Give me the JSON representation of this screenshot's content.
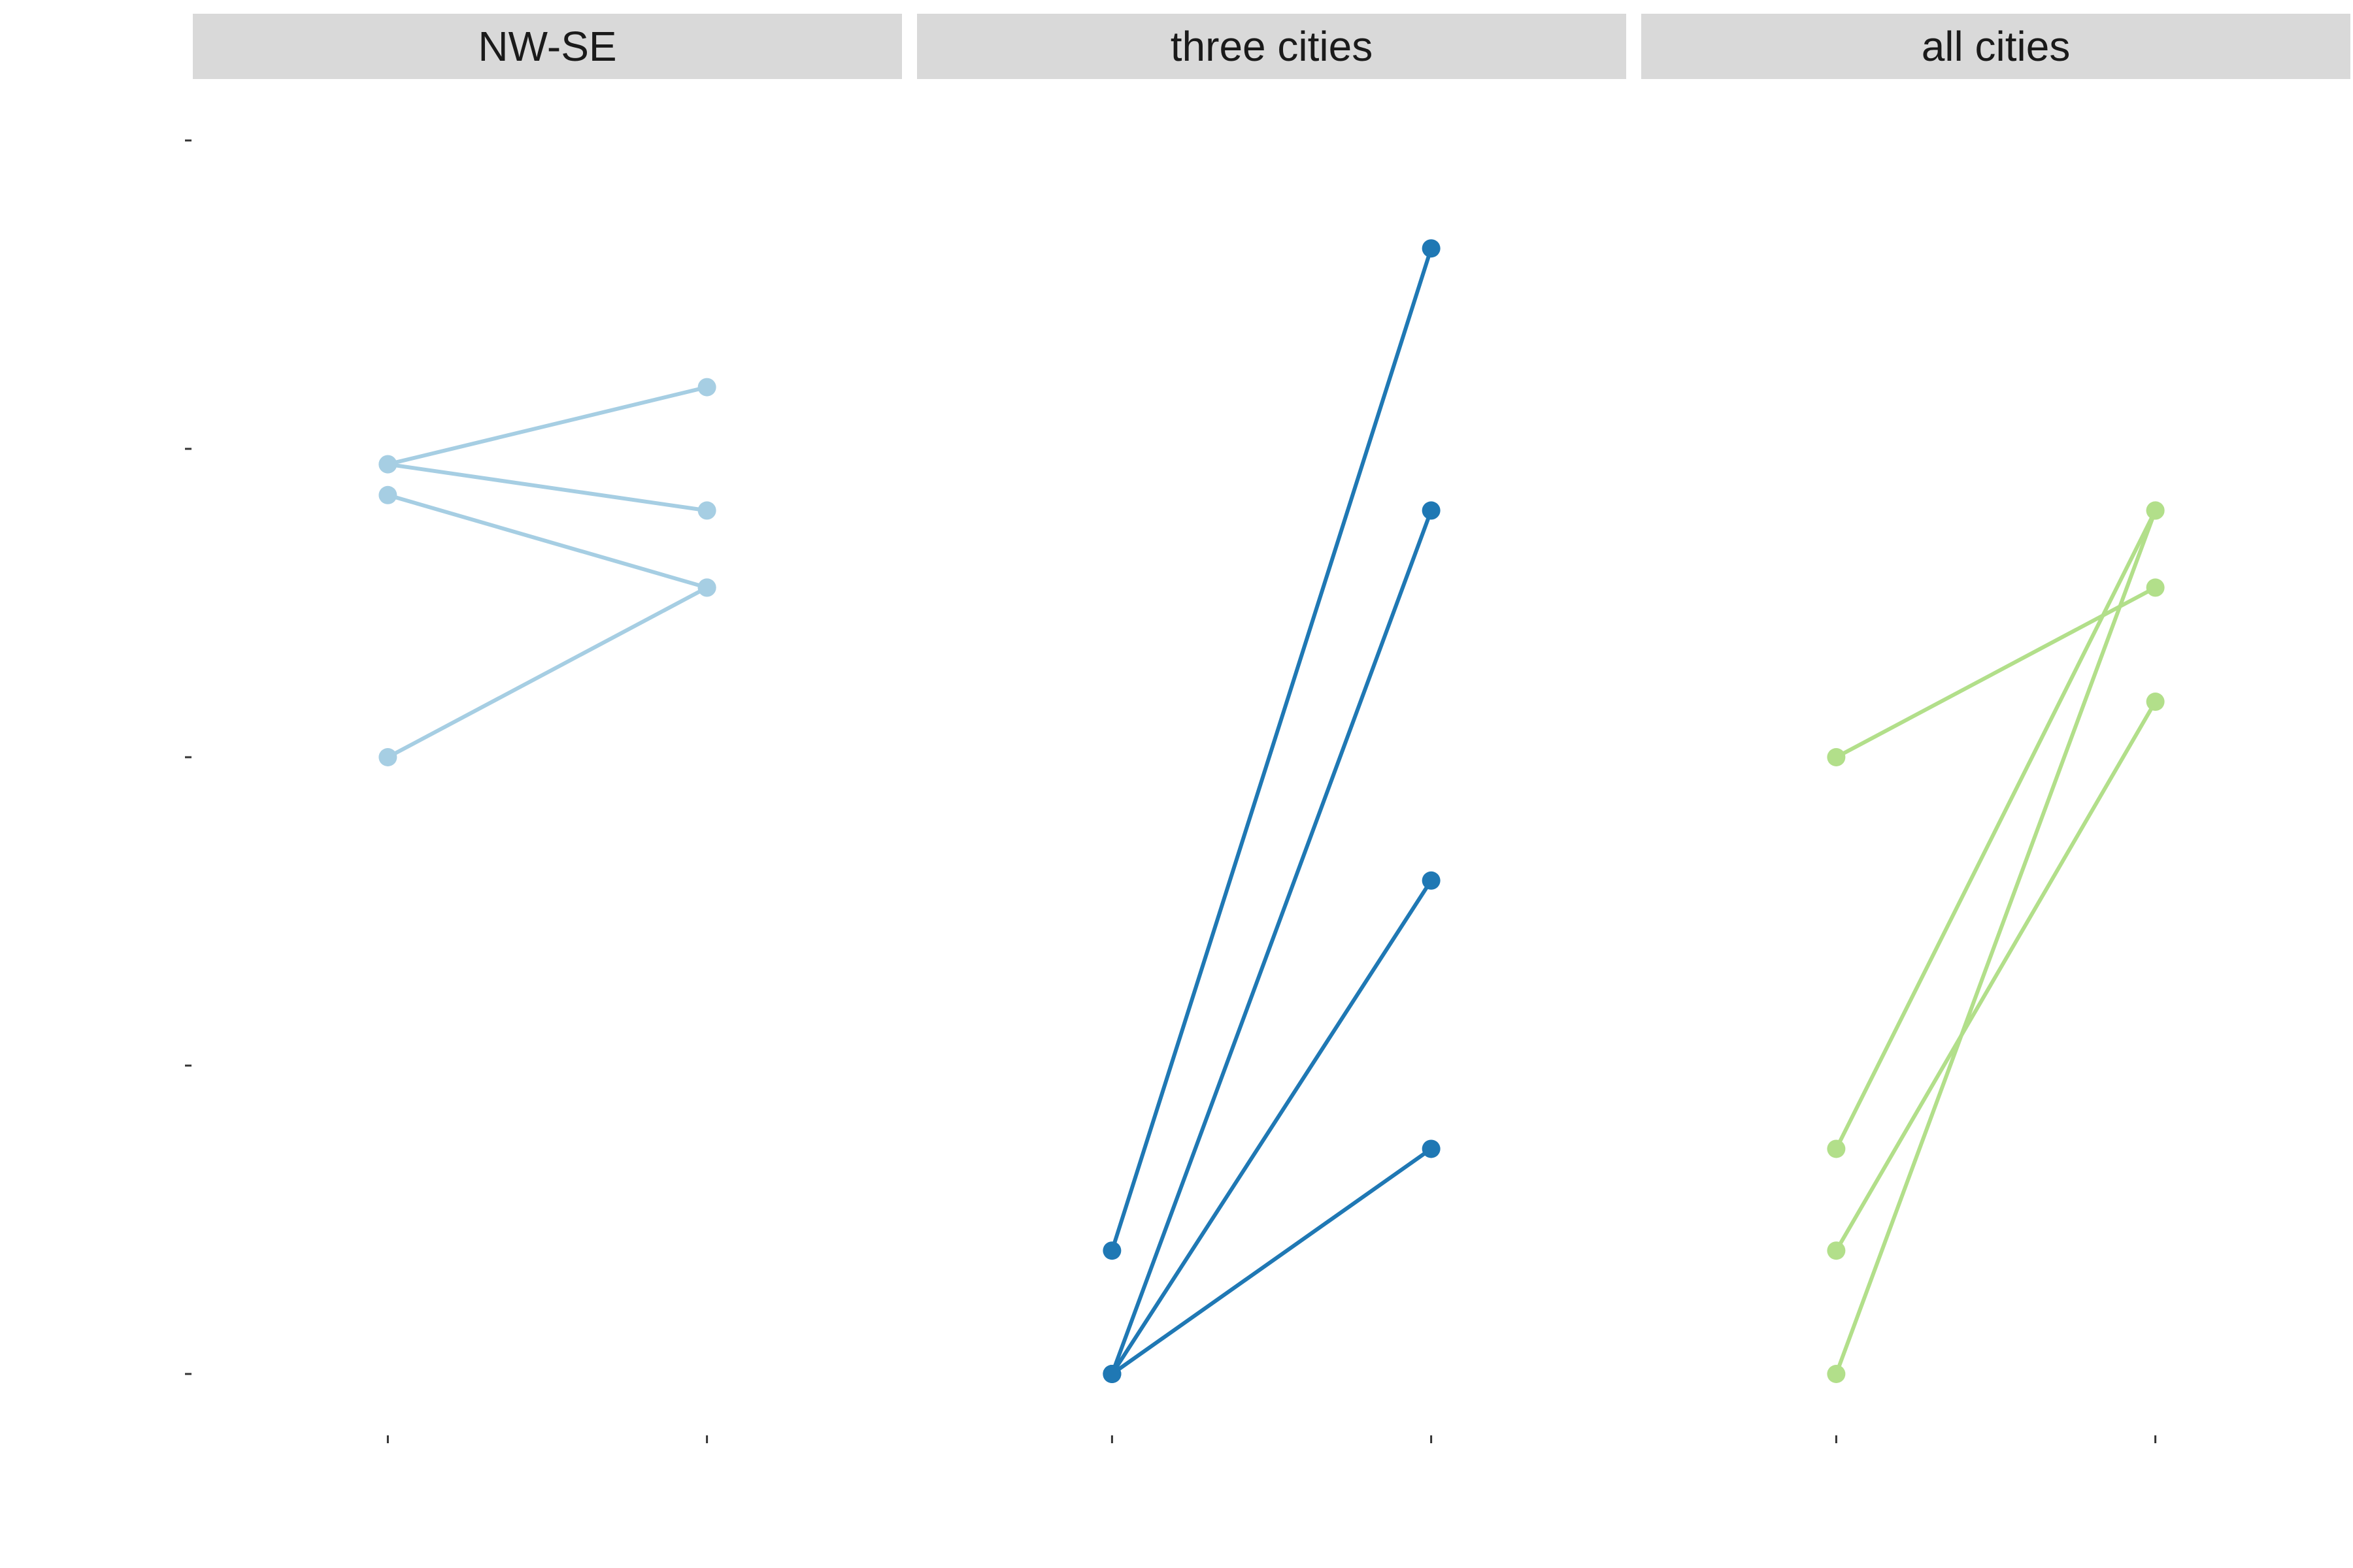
{
  "chart_data": {
    "type": "line",
    "y_axis_levels": 5,
    "x_axis_levels": 2,
    "panels": [
      {
        "name": "NW-SE",
        "color": "#a6cee3",
        "segments": [
          {
            "y0": 2.95,
            "y1": 3.2
          },
          {
            "y0": 2.95,
            "y1": 2.8
          },
          {
            "y0": 2.85,
            "y1": 2.55
          },
          {
            "y0": 2.0,
            "y1": 2.55
          }
        ]
      },
      {
        "name": "three cities",
        "color": "#1f78b4",
        "segments": [
          {
            "y0": 0.4,
            "y1": 3.65
          },
          {
            "y0": 0.0,
            "y1": 2.8
          },
          {
            "y0": 0.0,
            "y1": 1.6
          },
          {
            "y0": 0.0,
            "y1": 0.73
          }
        ]
      },
      {
        "name": "all cities",
        "color": "#b2df8a",
        "segments": [
          {
            "y0": 2.0,
            "y1": 2.55
          },
          {
            "y0": 0.73,
            "y1": 2.8
          },
          {
            "y0": 0.4,
            "y1": 2.18
          },
          {
            "y0": 0.0,
            "y1": 2.8
          }
        ]
      }
    ],
    "ylim": [
      -0.2,
      4.05
    ],
    "grid": false
  }
}
